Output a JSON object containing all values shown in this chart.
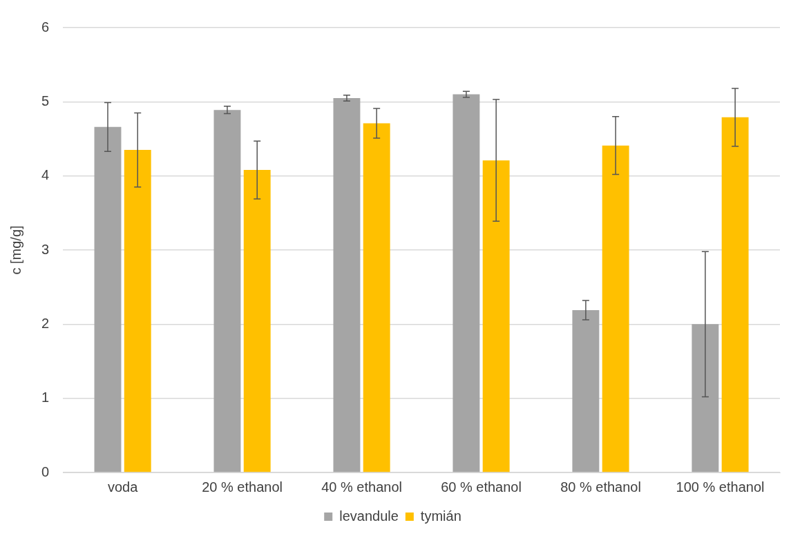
{
  "chart_data": {
    "type": "bar",
    "ylabel": "c [mg/g]",
    "categories": [
      "voda",
      "20 % ethanol",
      "40 % ethanol",
      "60 % ethanol",
      "80 % ethanol",
      "100 % ethanol"
    ],
    "series": [
      {
        "name": "levandule",
        "color": "#a5a5a5",
        "values": [
          4.66,
          4.89,
          5.05,
          5.1,
          2.19,
          2.0
        ],
        "errors": [
          0.33,
          0.05,
          0.04,
          0.04,
          0.13,
          0.98
        ]
      },
      {
        "name": "tymián",
        "color": "#ffc000",
        "values": [
          4.35,
          4.08,
          4.71,
          4.21,
          4.41,
          4.79
        ],
        "errors": [
          0.5,
          0.39,
          0.2,
          0.82,
          0.39,
          0.39
        ]
      }
    ],
    "ylim": [
      0,
      6
    ],
    "yticks": [
      0,
      1,
      2,
      3,
      4,
      5,
      6
    ],
    "grid": "y",
    "legend": "bottom"
  }
}
